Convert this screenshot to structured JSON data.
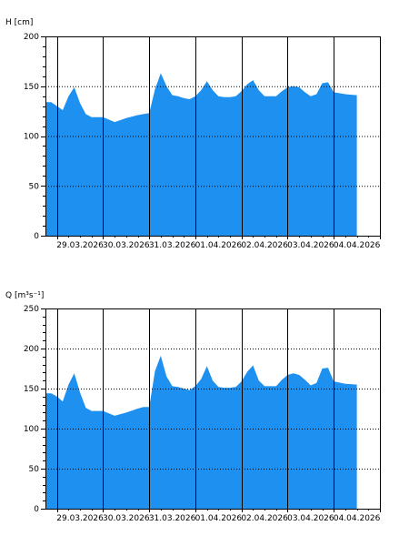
{
  "chart_data": [
    {
      "type": "area",
      "ylabel": "H [cm]",
      "ylim": [
        0,
        200
      ],
      "yticks": [
        0,
        50,
        100,
        150,
        200
      ],
      "xlim": [
        "2026-03-28T18:00",
        "2026-04-05T00:00"
      ],
      "xticks": [
        "29.03.2026",
        "30.03.2026",
        "31.03.2026",
        "01.04.2026",
        "02.04.2026",
        "03.04.2026",
        "04.04.2026"
      ],
      "grid": true,
      "fill_color": "#1e90f0",
      "series": [
        {
          "x": [
            "2026-03-28T18:00",
            "2026-03-28T21:00",
            "2026-03-29T00:00",
            "2026-03-29T03:00",
            "2026-03-29T06:00",
            "2026-03-29T09:00",
            "2026-03-29T12:00",
            "2026-03-29T15:00",
            "2026-03-29T18:00",
            "2026-03-29T21:00",
            "2026-03-30T00:00",
            "2026-03-30T06:00",
            "2026-03-30T09:00",
            "2026-03-30T12:00",
            "2026-03-30T18:00",
            "2026-03-30T21:00",
            "2026-03-31T00:00",
            "2026-03-31T03:00",
            "2026-03-31T06:00",
            "2026-03-31T09:00",
            "2026-03-31T12:00",
            "2026-03-31T15:00",
            "2026-03-31T18:00",
            "2026-03-31T21:00",
            "2026-04-01T00:00",
            "2026-04-01T03:00",
            "2026-04-01T06:00",
            "2026-04-01T09:00",
            "2026-04-01T12:00",
            "2026-04-01T15:00",
            "2026-04-01T18:00",
            "2026-04-01T21:00",
            "2026-04-02T00:00",
            "2026-04-02T03:00",
            "2026-04-02T06:00",
            "2026-04-02T09:00",
            "2026-04-02T12:00",
            "2026-04-02T15:00",
            "2026-04-02T18:00",
            "2026-04-02T21:00",
            "2026-04-03T00:00",
            "2026-04-03T03:00",
            "2026-04-03T06:00",
            "2026-04-03T09:00",
            "2026-04-03T12:00",
            "2026-04-03T15:00",
            "2026-04-03T18:00",
            "2026-04-03T21:00",
            "2026-04-04T00:00",
            "2026-04-04T06:00",
            "2026-04-04T12:00"
          ],
          "values": [
            134,
            134,
            130,
            126,
            140,
            149,
            133,
            122,
            119,
            119,
            119,
            114,
            116,
            118,
            121,
            122,
            123,
            147,
            163,
            150,
            141,
            140,
            138,
            137,
            140,
            146,
            155,
            146,
            140,
            139,
            139,
            140,
            145,
            152,
            156,
            146,
            140,
            140,
            140,
            145,
            149,
            150,
            149,
            144,
            140,
            142,
            153,
            154,
            144,
            142,
            141
          ]
        }
      ]
    },
    {
      "type": "area",
      "ylabel": "Q [m³s⁻¹]",
      "ylim": [
        0,
        250
      ],
      "yticks": [
        0,
        50,
        100,
        150,
        200,
        250
      ],
      "xlim": [
        "2026-03-28T18:00",
        "2026-04-05T00:00"
      ],
      "xticks": [
        "29.03.2026",
        "30.03.2026",
        "31.03.2026",
        "01.04.2026",
        "02.04.2026",
        "03.04.2026",
        "04.04.2026"
      ],
      "grid": true,
      "fill_color": "#1e90f0",
      "series": [
        {
          "x": [
            "2026-03-28T18:00",
            "2026-03-28T21:00",
            "2026-03-29T00:00",
            "2026-03-29T03:00",
            "2026-03-29T06:00",
            "2026-03-29T09:00",
            "2026-03-29T12:00",
            "2026-03-29T15:00",
            "2026-03-29T18:00",
            "2026-03-29T21:00",
            "2026-03-30T00:00",
            "2026-03-30T06:00",
            "2026-03-30T09:00",
            "2026-03-30T12:00",
            "2026-03-30T18:00",
            "2026-03-30T21:00",
            "2026-03-31T00:00",
            "2026-03-31T03:00",
            "2026-03-31T06:00",
            "2026-03-31T09:00",
            "2026-03-31T12:00",
            "2026-03-31T15:00",
            "2026-03-31T18:00",
            "2026-03-31T21:00",
            "2026-04-01T00:00",
            "2026-04-01T03:00",
            "2026-04-01T06:00",
            "2026-04-01T09:00",
            "2026-04-01T12:00",
            "2026-04-01T15:00",
            "2026-04-01T18:00",
            "2026-04-01T21:00",
            "2026-04-02T00:00",
            "2026-04-02T03:00",
            "2026-04-02T06:00",
            "2026-04-02T09:00",
            "2026-04-02T12:00",
            "2026-04-02T15:00",
            "2026-04-02T18:00",
            "2026-04-02T21:00",
            "2026-04-03T00:00",
            "2026-04-03T03:00",
            "2026-04-03T06:00",
            "2026-04-03T09:00",
            "2026-04-03T12:00",
            "2026-04-03T15:00",
            "2026-04-03T18:00",
            "2026-04-03T21:00",
            "2026-04-04T00:00",
            "2026-04-04T06:00",
            "2026-04-04T12:00"
          ],
          "values": [
            144,
            144,
            140,
            134,
            155,
            169,
            145,
            126,
            122,
            122,
            122,
            116,
            118,
            120,
            125,
            127,
            127,
            172,
            191,
            165,
            153,
            152,
            150,
            148,
            153,
            162,
            178,
            160,
            152,
            151,
            151,
            152,
            159,
            171,
            179,
            160,
            153,
            153,
            153,
            161,
            167,
            169,
            167,
            161,
            154,
            157,
            175,
            176,
            159,
            156,
            155
          ]
        }
      ]
    }
  ]
}
